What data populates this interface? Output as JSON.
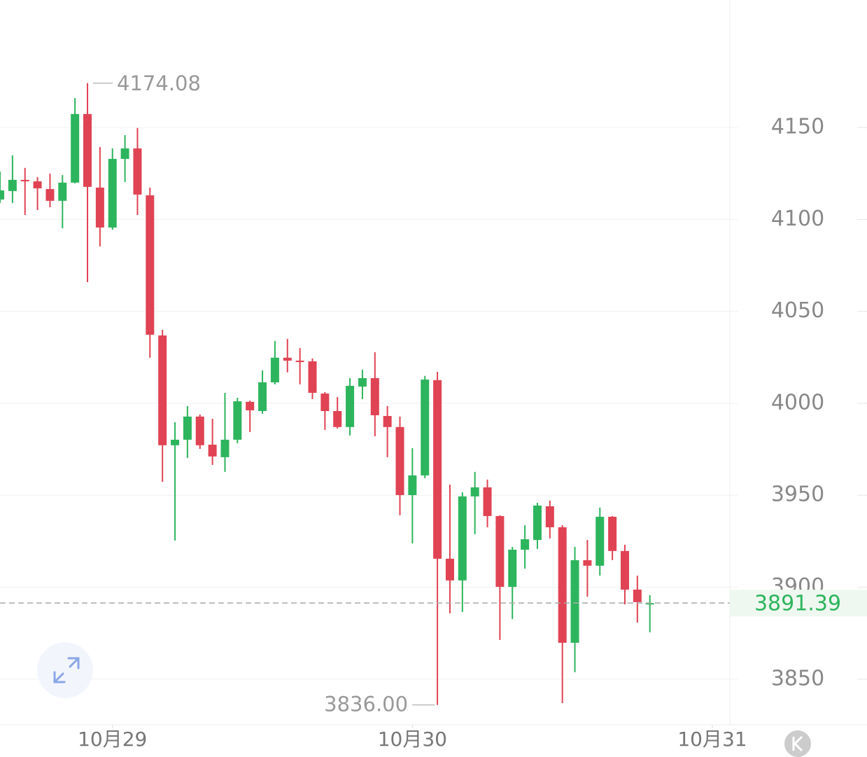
{
  "chart_data": {
    "type": "candlestick",
    "up_color": "#2db55d",
    "down_color": "#e04353",
    "series": {
      "open": [
        4110.8,
        4115.4,
        4121.5,
        4120.7,
        4116.5,
        4110.1,
        4120.0,
        4157.3,
        4117.3,
        4095.6,
        4132.9,
        4138.6,
        4113.1,
        4036.9,
        3977.2,
        3980.2,
        3992.8,
        3977.5,
        3970.7,
        3980.2,
        4000.8,
        3995.8,
        4011.4,
        4024.8,
        4023.2,
        4022.8,
        4005.3,
        3995.8,
        3987.1,
        4009.1,
        4013.7,
        3993.1,
        3987.1,
        3950.1,
        3960.8,
        4012.6,
        3915.5,
        3903.7,
        3949.4,
        3954.3,
        3938.7,
        3900.2,
        3920.4,
        3925.7,
        3944.0,
        3932.6,
        3869.8,
        3914.7,
        3911.7,
        3938.3,
        3919.7,
        3898.7,
        3891.0
      ],
      "high": [
        4126.0,
        4134.8,
        4128.0,
        4123.0,
        4124.9,
        4124.1,
        4166.0,
        4174.08,
        4139.4,
        4138.6,
        4145.8,
        4149.7,
        4117.3,
        4040.0,
        3989.7,
        3998.5,
        3993.9,
        3991.6,
        4005.7,
        4003.0,
        4001.5,
        4017.9,
        4033.9,
        4035.0,
        4030.1,
        4024.4,
        4006.1,
        4003.4,
        4013.7,
        4018.3,
        4027.8,
        3998.5,
        3992.8,
        3975.6,
        4014.9,
        4017.1,
        3955.8,
        3951.6,
        3962.7,
        3958.5,
        3939.1,
        3921.9,
        3933.7,
        3945.9,
        3947.1,
        3933.7,
        3921.9,
        3925.7,
        3943.3,
        3938.7,
        3923.1,
        3906.3,
        3895.7
      ],
      "low": [
        4108.9,
        4108.9,
        4102.4,
        4105.1,
        4106.6,
        4095.2,
        4119.6,
        4065.9,
        4085.3,
        4094.4,
        4120.3,
        4102.4,
        4024.8,
        3957.3,
        3925.4,
        3970.3,
        3975.2,
        3966.5,
        3962.7,
        3978.3,
        3984.4,
        3994.3,
        4010.3,
        4016.8,
        4010.3,
        4002.3,
        3985.5,
        3986.3,
        3982.5,
        4002.3,
        3982.1,
        3970.7,
        3939.1,
        3923.8,
        3959.3,
        3836,
        3885.8,
        3886.5,
        3928.8,
        3932.6,
        3871.3,
        3882.7,
        3910.1,
        3920.8,
        3926.5,
        3837.0,
        3853.8,
        3894.9,
        3906.3,
        3914.7,
        3890.7,
        3880.8,
        3875.5
      ],
      "close": [
        4115.8,
        4121.5,
        4120.7,
        4116.9,
        4110.1,
        4120.0,
        4157.3,
        4117.7,
        4095.6,
        4132.9,
        4138.6,
        4113.5,
        4037.3,
        3977.2,
        3980.2,
        3992.8,
        3977.2,
        3971.1,
        3980.2,
        4001.1,
        3996.2,
        4011.4,
        4024.8,
        4023.2,
        4022.5,
        4005.7,
        3995.8,
        3987.1,
        4009.5,
        4013.7,
        3993.5,
        3987.1,
        3950.1,
        3960.8,
        4012.9,
        3915.5,
        3903.7,
        3949.4,
        3954.3,
        3938.7,
        3900.2,
        3920.4,
        3926.1,
        3944.4,
        3932.6,
        3869.8,
        3914.7,
        3911.7,
        3938.3,
        3919.7,
        3898.7,
        3891.9,
        3891.39
      ]
    },
    "extremes": {
      "high": 4174.08,
      "low": {
        "value": 3836,
        "label": "3836.00"
      }
    },
    "last_price": 3891.39,
    "ylim": [
      3825.2,
      4219.3
    ],
    "yticks": [
      3850,
      3900,
      3950,
      4000,
      4050,
      4100,
      4150
    ],
    "xlim": [
      0,
      58.4
    ],
    "xticks": [
      {
        "value": 9,
        "label": "10月29"
      },
      {
        "value": 33,
        "label": "10月30"
      },
      {
        "value": 57,
        "label": "10月31"
      }
    ],
    "grid": true
  }
}
